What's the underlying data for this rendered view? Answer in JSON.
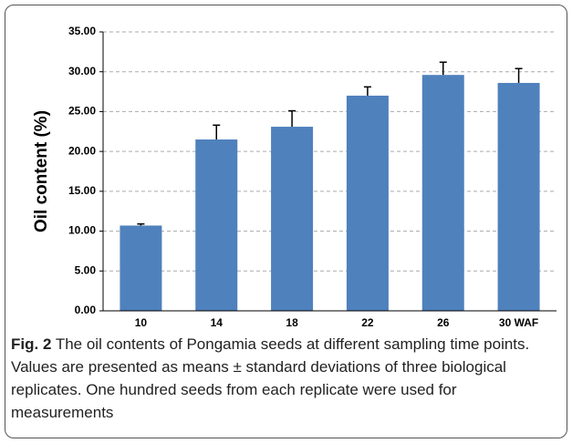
{
  "chart_data": {
    "type": "bar",
    "ylabel": "Oil content (%)",
    "categories": [
      "10",
      "14",
      "18",
      "22",
      "26",
      "30 WAF"
    ],
    "values": [
      10.7,
      21.5,
      23.1,
      27.0,
      29.6,
      28.6
    ],
    "errors": [
      0.2,
      1.8,
      2.0,
      1.1,
      1.6,
      1.8
    ],
    "color": "#4f81bd",
    "ylim": [
      0,
      35
    ],
    "yticks": [
      {
        "value": 0,
        "label": "0.00"
      },
      {
        "value": 5,
        "label": "5.00"
      },
      {
        "value": 10,
        "label": "10.00"
      },
      {
        "value": 15,
        "label": "15.00"
      },
      {
        "value": 20,
        "label": "20.00"
      },
      {
        "value": 25,
        "label": "25.00"
      },
      {
        "value": 30,
        "label": "30.00"
      },
      {
        "value": 35,
        "label": "35.00"
      }
    ],
    "grid": true,
    "caption": {
      "label": "Fig. 2",
      "text": "The oil contents of Pongamia seeds at different sampling time points. Values are presented as means ± standard deviations of three biological replicates. One hundred seeds from each replicate were used for measurements"
    }
  }
}
